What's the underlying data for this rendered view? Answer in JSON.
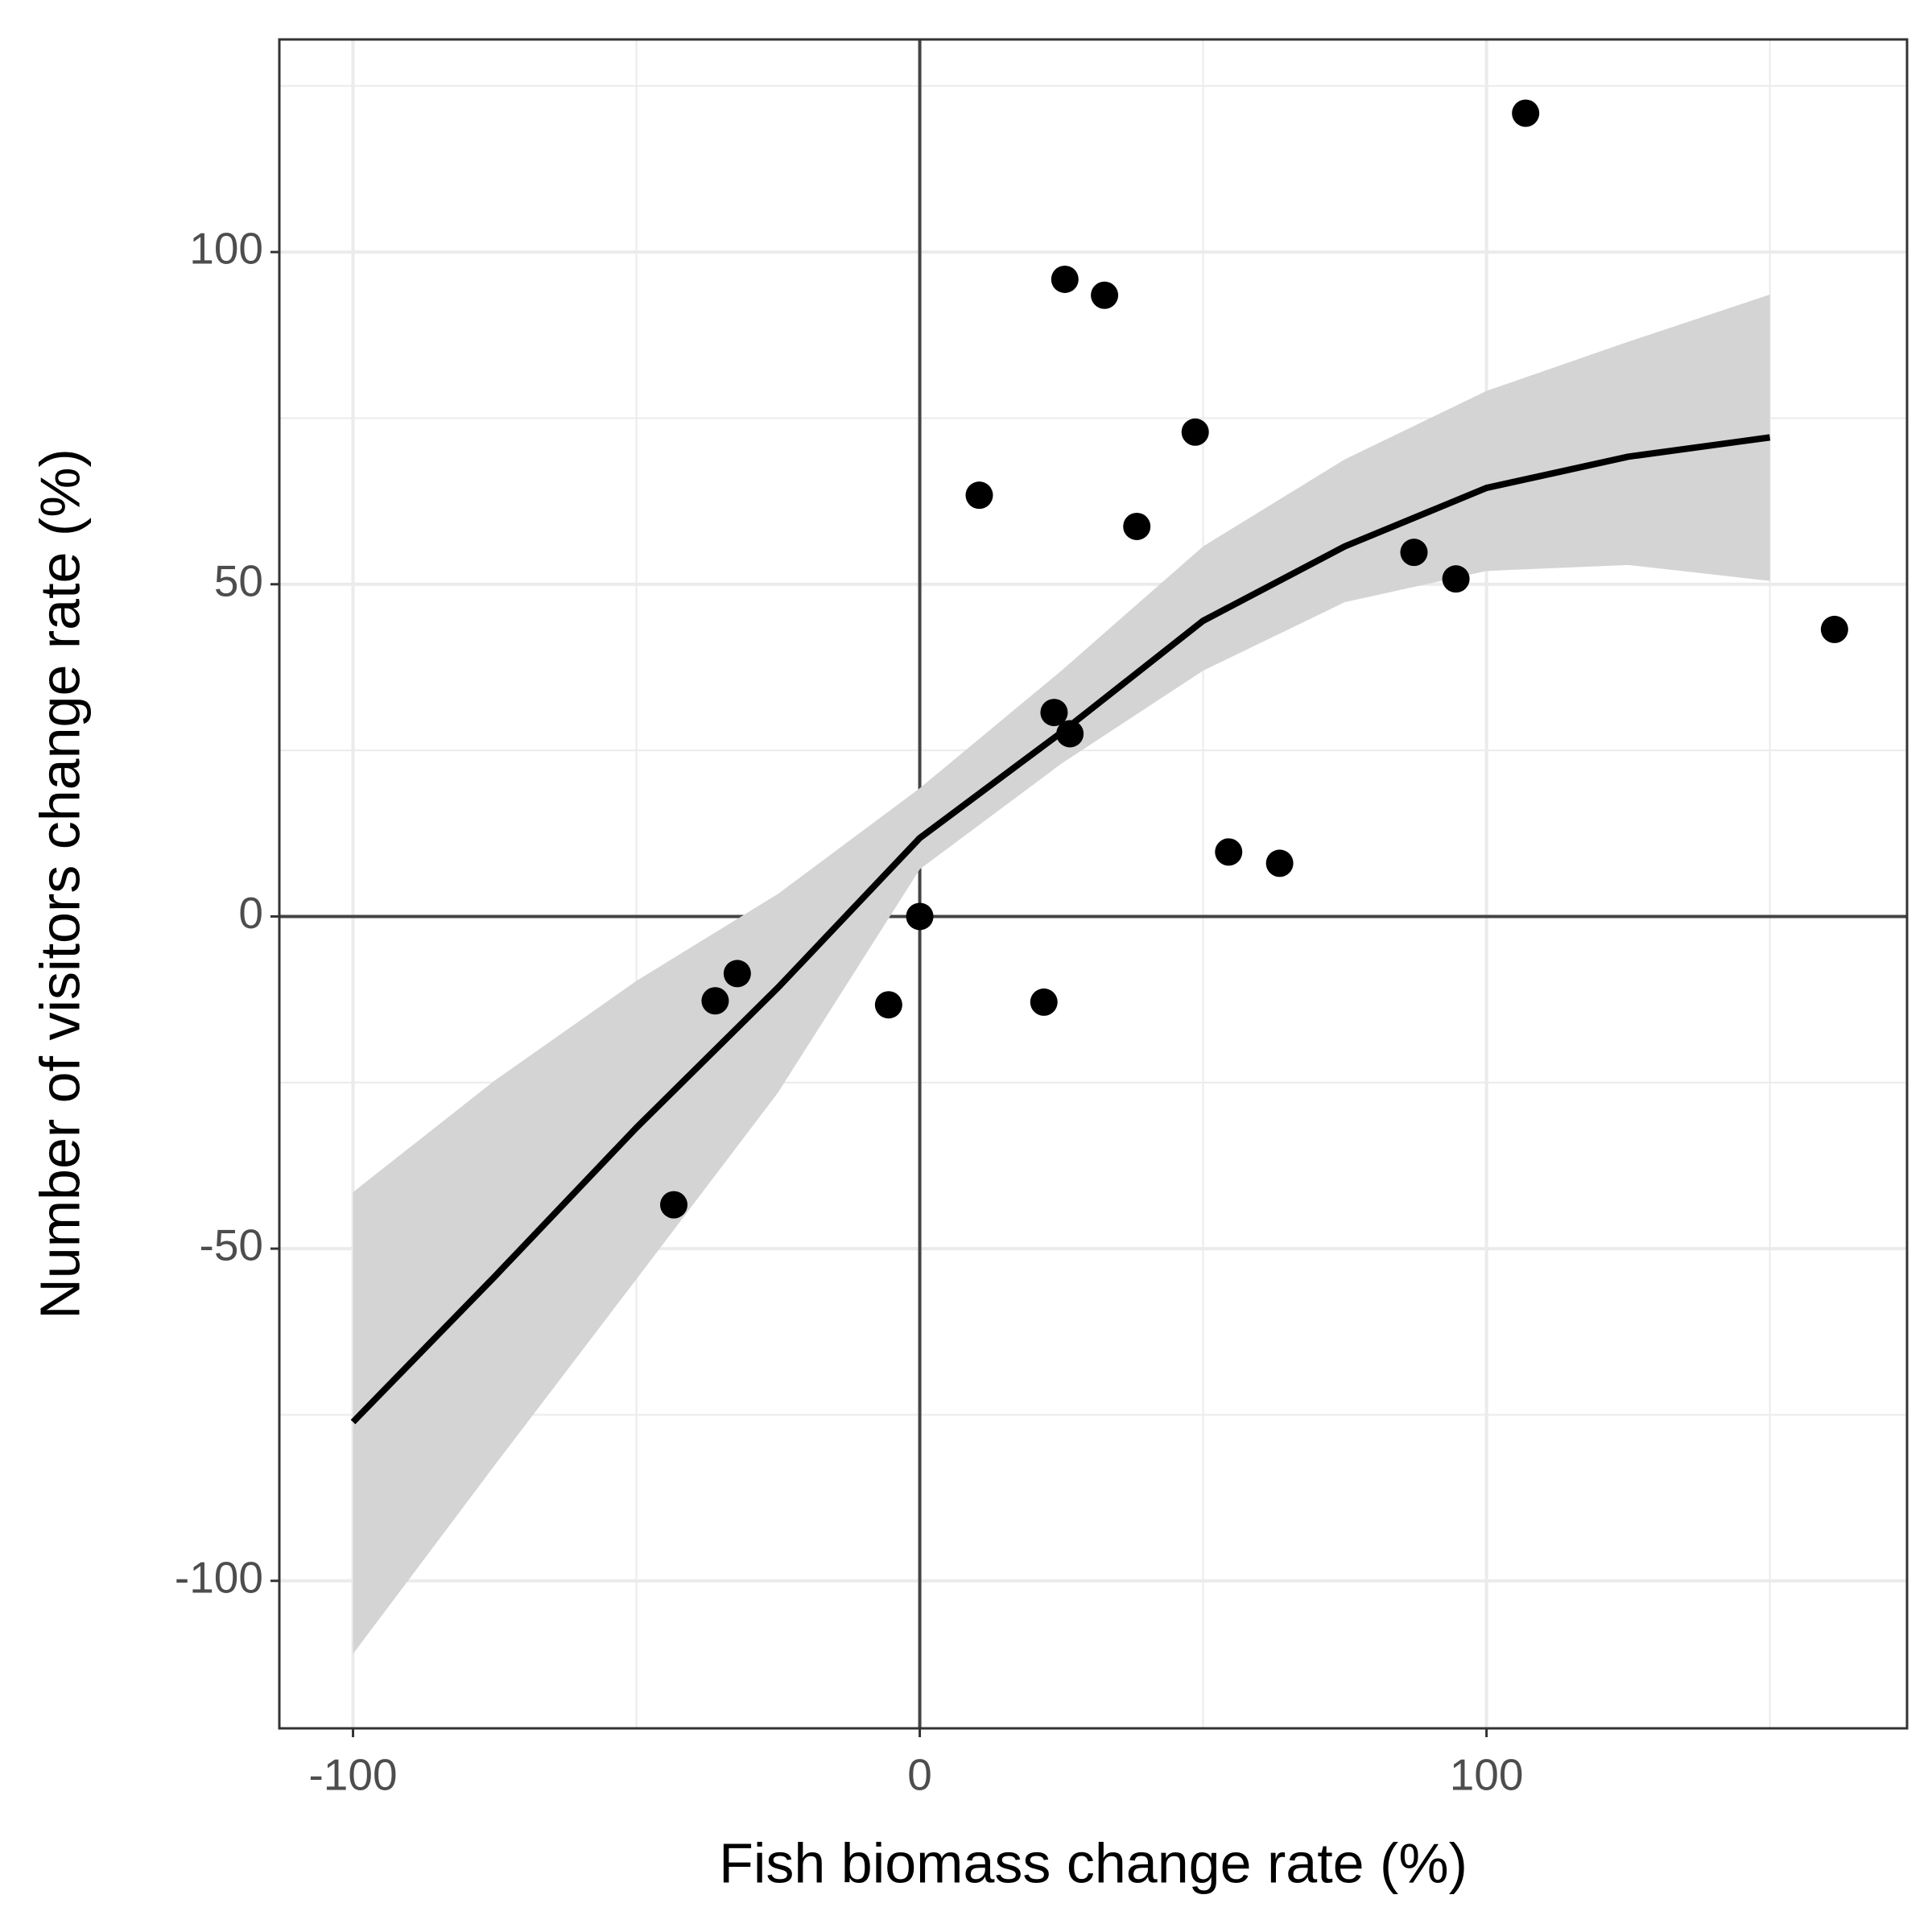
{
  "chart_data": {
    "type": "scatter",
    "x_label": "Fish biomass change rate (%)",
    "y_label": "Number of visitors change rate (%)",
    "xlim": [
      -113.0,
      174.2
    ],
    "ylim": [
      -122.2,
      132.0
    ],
    "xticks": [
      -100,
      0,
      100
    ],
    "yticks": [
      -100,
      -50,
      0,
      50,
      100
    ],
    "grid": true,
    "hline": 0,
    "vline": 0,
    "points": {
      "color": "#000000",
      "x": [
        -43.4,
        -36.1,
        -32.2,
        -5.5,
        0,
        10.5,
        21.9,
        23.7,
        26.5,
        25.6,
        32.6,
        38.3,
        48.6,
        54.5,
        63.5,
        87.2,
        94.6,
        106.9,
        161.4
      ],
      "values": [
        -43.4,
        -12.7,
        -8.6,
        -13.3,
        0,
        63.4,
        -12.9,
        30.7,
        27.5,
        95.9,
        93.5,
        58.7,
        72.9,
        9.7,
        8.0,
        54.8,
        50.8,
        120.9,
        43.2
      ]
    },
    "smooth": {
      "color": "#000000",
      "band_color": "#d4d4d4",
      "x": [
        -100,
        -75,
        -50,
        -25,
        0,
        25,
        50,
        75,
        100,
        125,
        150
      ],
      "values": [
        -76.1,
        -54.2,
        -31.8,
        -10.7,
        11.8,
        27.7,
        44.5,
        55.7,
        64.5,
        69.2,
        72.1
      ],
      "lower": [
        -111.0,
        -82.6,
        -54.6,
        -26.5,
        7.1,
        23.0,
        37.0,
        47.3,
        52.0,
        52.9,
        50.5
      ],
      "upper": [
        -41.5,
        -24.7,
        -9.7,
        3.4,
        19.3,
        37.0,
        55.7,
        68.8,
        79.1,
        86.5,
        93.6
      ]
    }
  }
}
